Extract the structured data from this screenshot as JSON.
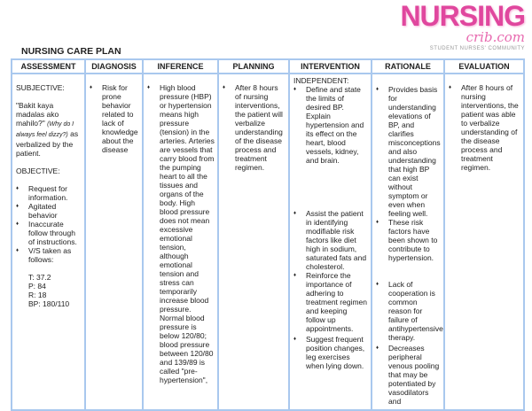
{
  "logo": {
    "brand": "NURSING",
    "domain": "crib.com",
    "tagline": "STUDENT NURSES' COMMUNITY",
    "color": "#e0479e"
  },
  "title": "NURSING CARE PLAN",
  "headers": [
    "ASSESSMENT",
    "DIAGNOSIS",
    "INFERENCE",
    "PLANNING",
    "INTERVENTION",
    "RATIONALE",
    "EVALUATION"
  ],
  "assessment": {
    "subjective_label": "SUBJECTIVE:",
    "quote": "\"Bakit kaya madalas ako mahilo?\"",
    "translation": "(Why do I always feel dizzy?)",
    "quote_suffix": "as verbalized by the patient.",
    "objective_label": "OBJECTIVE:",
    "items": [
      "Request for information.",
      "Agitated behavior",
      "Inaccurate follow through of instructions.",
      "V/S taken as follows:"
    ],
    "vitals": [
      "T: 37.2",
      "P: 84",
      "R: 18",
      "BP: 180/110"
    ]
  },
  "diagnosis": "Risk for prone behavior related to lack of knowledge about the disease",
  "inference": "High blood pressure (HBP) or hypertension means high pressure (tension) in the arteries. Arteries are vessels that carry blood from the pumping heart to all the tissues and organs of the body. High blood pressure does not mean excessive emotional tension, although emotional tension and stress can temporarily increase blood pressure. Normal blood pressure is below 120/80; blood pressure between 120/80 and 139/89 is called \"pre-hypertension\",",
  "planning": "After 8 hours of nursing interventions, the patient will verbalize understanding of the disease process and treatment regimen.",
  "intervention": {
    "label": "INDEPENDENT:",
    "items": [
      "Define and state the limits of desired BP. Explain hypertension and its effect on the heart, blood vessels, kidney, and brain.",
      "Assist the patient in identifying modifiable risk factors like diet high in sodium, saturated fats and cholesterol.",
      "Reinforce the importance of adhering to treatment regimen and keeping follow up appointments.",
      "Suggest frequent position changes, leg exercises when lying down."
    ]
  },
  "rationale": [
    "Provides basis for understanding elevations of BP, and clarifies misconceptions and also understanding that high BP can exist without symptom or even when feeling well.",
    "These risk factors have been shown to contribute to hypertension.",
    "Lack of cooperation is common reason for failure of antihypertensive therapy.",
    "Decreases peripheral venous pooling that may be potentiated by vasodilators and"
  ],
  "evaluation": "After 8 hours of nursing interventions, the patient was able to verbalize understanding of the disease process and treatment regimen."
}
